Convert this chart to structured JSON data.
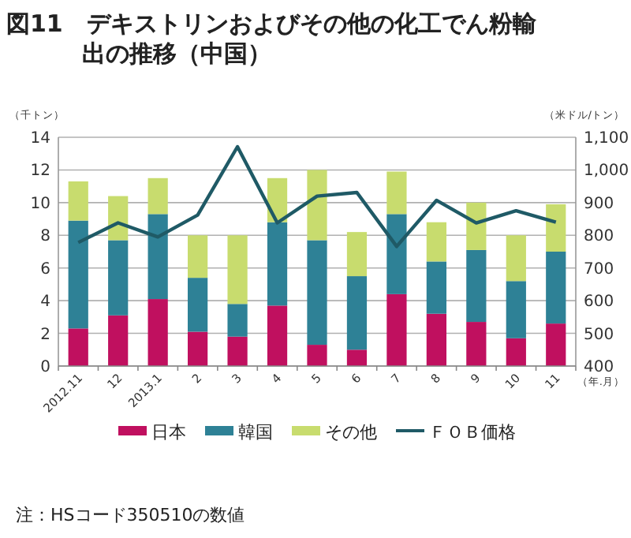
{
  "chart_data": {
    "type": "bar",
    "title": "図11　デキストリンおよびその他の化工でん粉輸出の推移（中国）",
    "categories": [
      "2012.11",
      "12",
      "2013.1",
      "2",
      "3",
      "4",
      "5",
      "6",
      "7",
      "8",
      "9",
      "10",
      "11"
    ],
    "xlabel": "（年.月）",
    "ylabel": "（千トン）",
    "y2label": "（米ドル/トン）",
    "stacked": true,
    "series": [
      {
        "name": "日本",
        "color": "#c0105f",
        "values": [
          2.3,
          3.1,
          4.1,
          2.1,
          1.8,
          3.7,
          1.3,
          1.0,
          4.4,
          3.2,
          2.7,
          1.7,
          2.6
        ]
      },
      {
        "name": "韓国",
        "color": "#2e8196",
        "values": [
          6.6,
          4.6,
          5.2,
          3.3,
          2.0,
          5.1,
          6.4,
          4.5,
          4.9,
          3.2,
          4.4,
          3.5,
          4.4
        ]
      },
      {
        "name": "その他",
        "color": "#c8dc6e",
        "values": [
          2.4,
          2.7,
          2.2,
          2.6,
          4.2,
          2.7,
          4.3,
          2.7,
          2.6,
          2.4,
          2.9,
          2.8,
          2.9
        ]
      },
      {
        "name": "ＦＯＢ価格",
        "type": "line",
        "axis": "y2",
        "color": "#1f5a66",
        "values": [
          778,
          838,
          795,
          862,
          1071,
          838,
          920,
          931,
          766,
          907,
          838,
          875,
          840
        ]
      }
    ],
    "ylim": [
      0,
      14
    ],
    "yticks": [
      0,
      2,
      4,
      6,
      8,
      10,
      12,
      14
    ],
    "y2lim": [
      400,
      1100
    ],
    "y2ticks": [
      {
        "value": 400,
        "label": "400"
      },
      {
        "value": 500,
        "label": "500"
      },
      {
        "value": 600,
        "label": "600"
      },
      {
        "value": 700,
        "label": "700"
      },
      {
        "value": 800,
        "label": "800"
      },
      {
        "value": 900,
        "label": "900"
      },
      {
        "value": 1000,
        "label": "1,000"
      },
      {
        "value": 1100,
        "label": "1,100"
      }
    ],
    "grid": "y",
    "legend": "bottom",
    "marker": "none",
    "line_style": "solid",
    "annotations": [
      "注：HSコード350510の数値"
    ]
  }
}
